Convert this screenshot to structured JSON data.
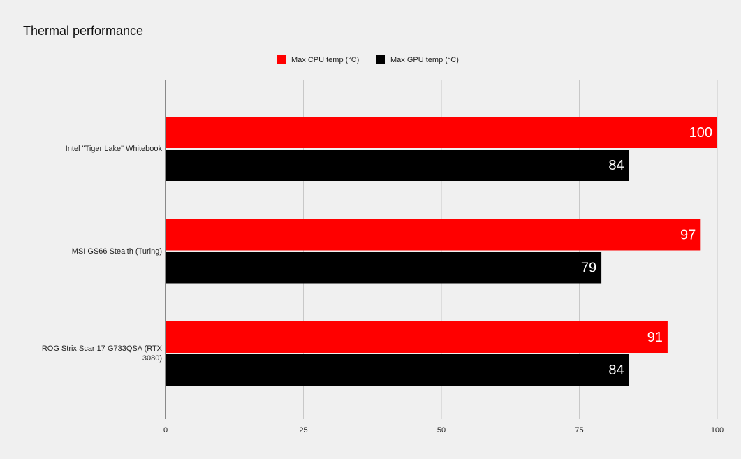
{
  "chart_data": {
    "type": "hbar",
    "title": "Thermal performance",
    "categories": [
      "Intel \"Tiger Lake\" Whitebook",
      "MSI GS66 Stealth (Turing)",
      "ROG Strix Scar 17 G733QSA (RTX 3080)"
    ],
    "series": [
      {
        "name": "Max CPU temp (°C)",
        "color": "#ff0000",
        "values": [
          100,
          97,
          91
        ]
      },
      {
        "name": "Max GPU temp (°C)",
        "color": "#000000",
        "values": [
          84,
          79,
          84
        ]
      }
    ],
    "xlim": [
      0,
      100
    ],
    "xticks": [
      0,
      25,
      50,
      75,
      100
    ],
    "grid": true,
    "legend": "top"
  }
}
